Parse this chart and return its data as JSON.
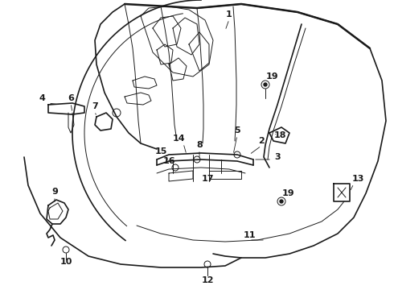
{
  "background_color": "#ffffff",
  "line_color": "#1a1a1a",
  "label_color": "#111111",
  "fig_width": 4.9,
  "fig_height": 3.6,
  "dpi": 100,
  "lw_main": 1.2,
  "lw_thin": 0.7,
  "lw_thick": 1.8,
  "font_size": 8.0
}
